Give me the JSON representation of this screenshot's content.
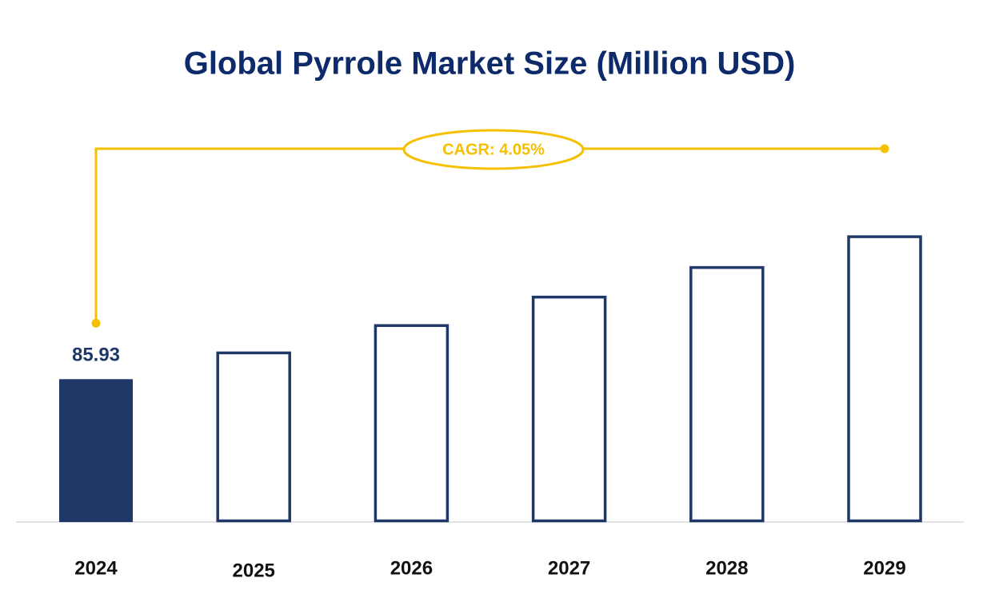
{
  "chart_data": {
    "type": "bar",
    "title": "Global Pyrrole Market Size (Million USD)",
    "annotation": "CAGR: 4.05%",
    "categories": [
      "2024",
      "2025",
      "2026",
      "2027",
      "2028",
      "2029"
    ],
    "values": [
      85.93,
      89.41,
      93.03,
      96.8,
      100.72,
      104.8
    ],
    "color": "#1f3868",
    "annotation_color": "#f5c000",
    "ylim": [
      67,
      110
    ],
    "grid": false
  }
}
